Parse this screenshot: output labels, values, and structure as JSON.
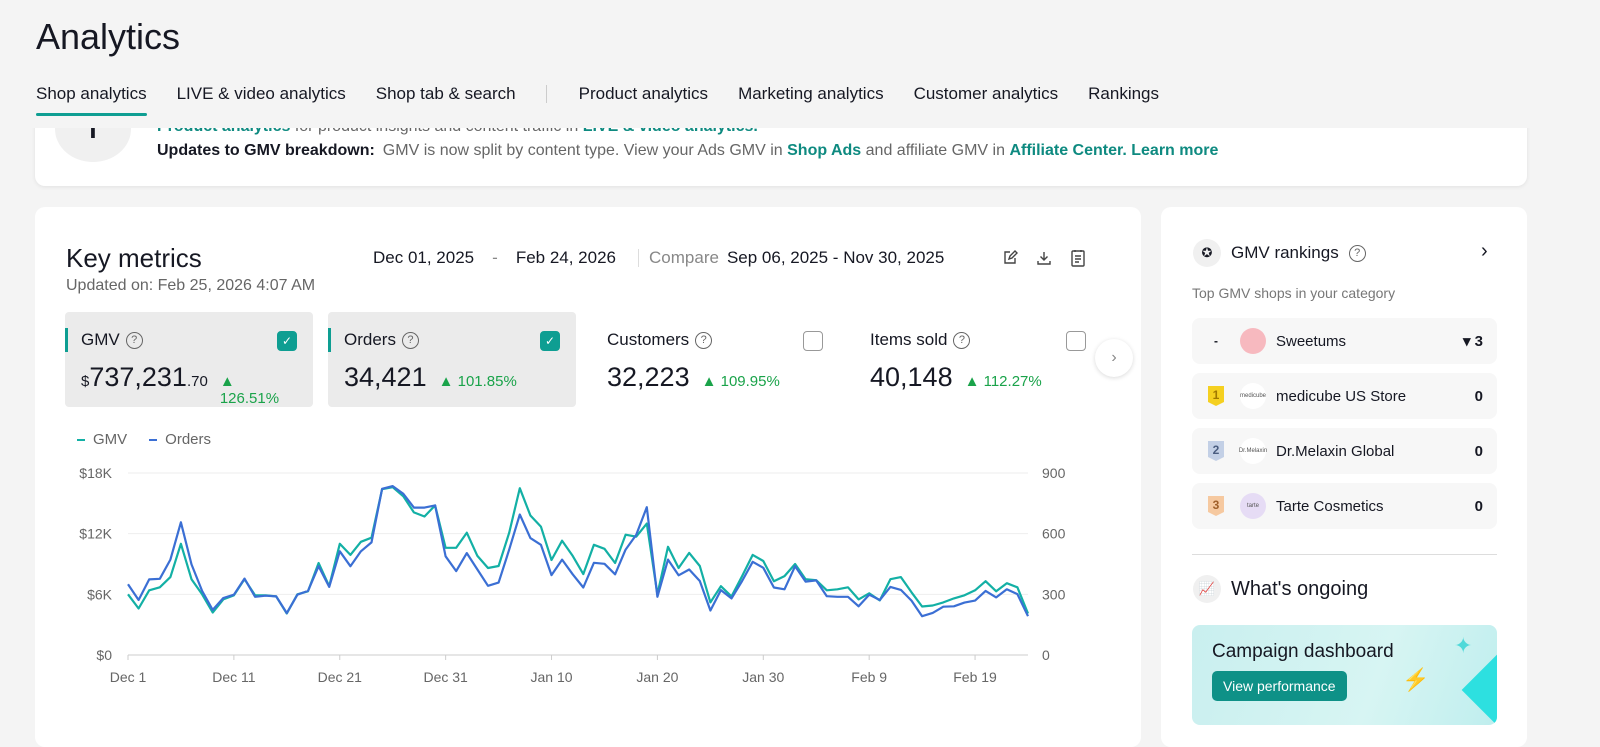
{
  "header": {
    "title": "Analytics",
    "tabs": [
      "Shop analytics",
      "LIVE & video analytics",
      "Shop tab & search",
      "Product analytics",
      "Marketing analytics",
      "Customer analytics",
      "Rankings"
    ]
  },
  "banner": {
    "line1_link1": "Product analytics",
    "line1_text": " for product insights and content traffic in ",
    "line1_link2": "LIVE & video analytics.",
    "label": "Updates to GMV breakdown:",
    "text1": "GMV is now split by content type. View your Ads GMV in ",
    "link_ads": "Shop Ads",
    "text2": " and affiliate GMV in ",
    "link_aff": "Affiliate Center.",
    "learn": "Learn more"
  },
  "key_metrics": {
    "title": "Key metrics",
    "updated": "Updated on: Feb 25, 2026 4:07 AM",
    "start": "Dec 01, 2025",
    "sep": "-",
    "end": "Feb 24, 2026",
    "compare_label": "Compare",
    "compare_range": "Sep 06, 2025 - Nov 30, 2025",
    "metrics": [
      {
        "label": "GMV",
        "prefix": "$",
        "value": "737,231",
        "decimals": ".70",
        "change": "126.51%",
        "checked": true
      },
      {
        "label": "Orders",
        "prefix": "",
        "value": "34,421",
        "decimals": "",
        "change": "101.85%",
        "checked": true
      },
      {
        "label": "Customers",
        "prefix": "",
        "value": "32,223",
        "decimals": "",
        "change": "109.95%",
        "checked": false
      },
      {
        "label": "Items sold",
        "prefix": "",
        "value": "40,148",
        "decimals": "",
        "change": "112.27%",
        "checked": false
      }
    ]
  },
  "chart_data": {
    "type": "line",
    "legend": [
      "GMV",
      "Orders"
    ],
    "legend_position": "top-left",
    "x_ticks": [
      "Dec 1",
      "Dec 11",
      "Dec 21",
      "Dec 31",
      "Jan 10",
      "Jan 20",
      "Jan 30",
      "Feb 9",
      "Feb 19"
    ],
    "y_left_ticks": [
      "$0",
      "$6K",
      "$12K",
      "$18K"
    ],
    "y_right_ticks": [
      "0",
      "300",
      "600",
      "900"
    ],
    "ylim_left": [
      0,
      18000
    ],
    "ylim_right": [
      0,
      900
    ],
    "colors": {
      "GMV": "#13b0a5",
      "Orders": "#3b6fd4"
    },
    "series": [
      {
        "name": "GMV",
        "axis": "left",
        "values": [
          6000,
          4600,
          6400,
          6700,
          7700,
          11000,
          7500,
          6000,
          4200,
          5500,
          5900,
          7500,
          5900,
          5900,
          5800,
          4100,
          6000,
          6300,
          9100,
          6800,
          11000,
          9900,
          11200,
          11600,
          16400,
          16600,
          15700,
          14100,
          13700,
          14800,
          10600,
          10600,
          12100,
          9800,
          8600,
          8800,
          12100,
          16500,
          13800,
          12700,
          9400,
          11300,
          9800,
          8000,
          10900,
          10500,
          9100,
          11900,
          11700,
          13000,
          6000,
          10700,
          8600,
          10100,
          8800,
          5200,
          6800,
          5800,
          7800,
          9900,
          9300,
          7300,
          7800,
          9000,
          7500,
          7400,
          6400,
          6500,
          6700,
          5500,
          6100,
          5400,
          7500,
          7700,
          6200,
          4800,
          4900,
          5200,
          5600,
          5900,
          6400,
          7300,
          6300,
          7100,
          6700,
          4100
        ]
      },
      {
        "name": "Orders",
        "axis": "right",
        "values": [
          350,
          272,
          374,
          377,
          472,
          656,
          448,
          317,
          223,
          282,
          298,
          378,
          288,
          293,
          290,
          207,
          298,
          317,
          439,
          337,
          513,
          439,
          513,
          557,
          822,
          835,
          797,
          729,
          729,
          740,
          488,
          415,
          504,
          423,
          342,
          358,
          521,
          695,
          578,
          545,
          395,
          472,
          399,
          334,
          456,
          451,
          399,
          521,
          594,
          731,
          288,
          472,
          394,
          423,
          366,
          220,
          321,
          280,
          366,
          461,
          431,
          334,
          325,
          439,
          363,
          369,
          291,
          288,
          288,
          241,
          298,
          272,
          337,
          322,
          269,
          192,
          208,
          239,
          241,
          259,
          269,
          317,
          285,
          325,
          301,
          192
        ]
      }
    ]
  },
  "rankings": {
    "title": "GMV rankings",
    "subtitle": "Top GMV shops in your category",
    "items": [
      {
        "rank": "-",
        "name": "Sweetums",
        "change": "▾ 3",
        "avatar": ""
      },
      {
        "rank": "1",
        "name": "medicube US Store",
        "change": "0",
        "avatar": "medicube"
      },
      {
        "rank": "2",
        "name": "Dr.Melaxin Global",
        "change": "0",
        "avatar": "Dr.Melaxin"
      },
      {
        "rank": "3",
        "name": "Tarte Cosmetics",
        "change": "0",
        "avatar": "tarte"
      }
    ]
  },
  "ongoing": {
    "title": "What's ongoing",
    "card_title": "Campaign dashboard",
    "button": "View performance"
  }
}
